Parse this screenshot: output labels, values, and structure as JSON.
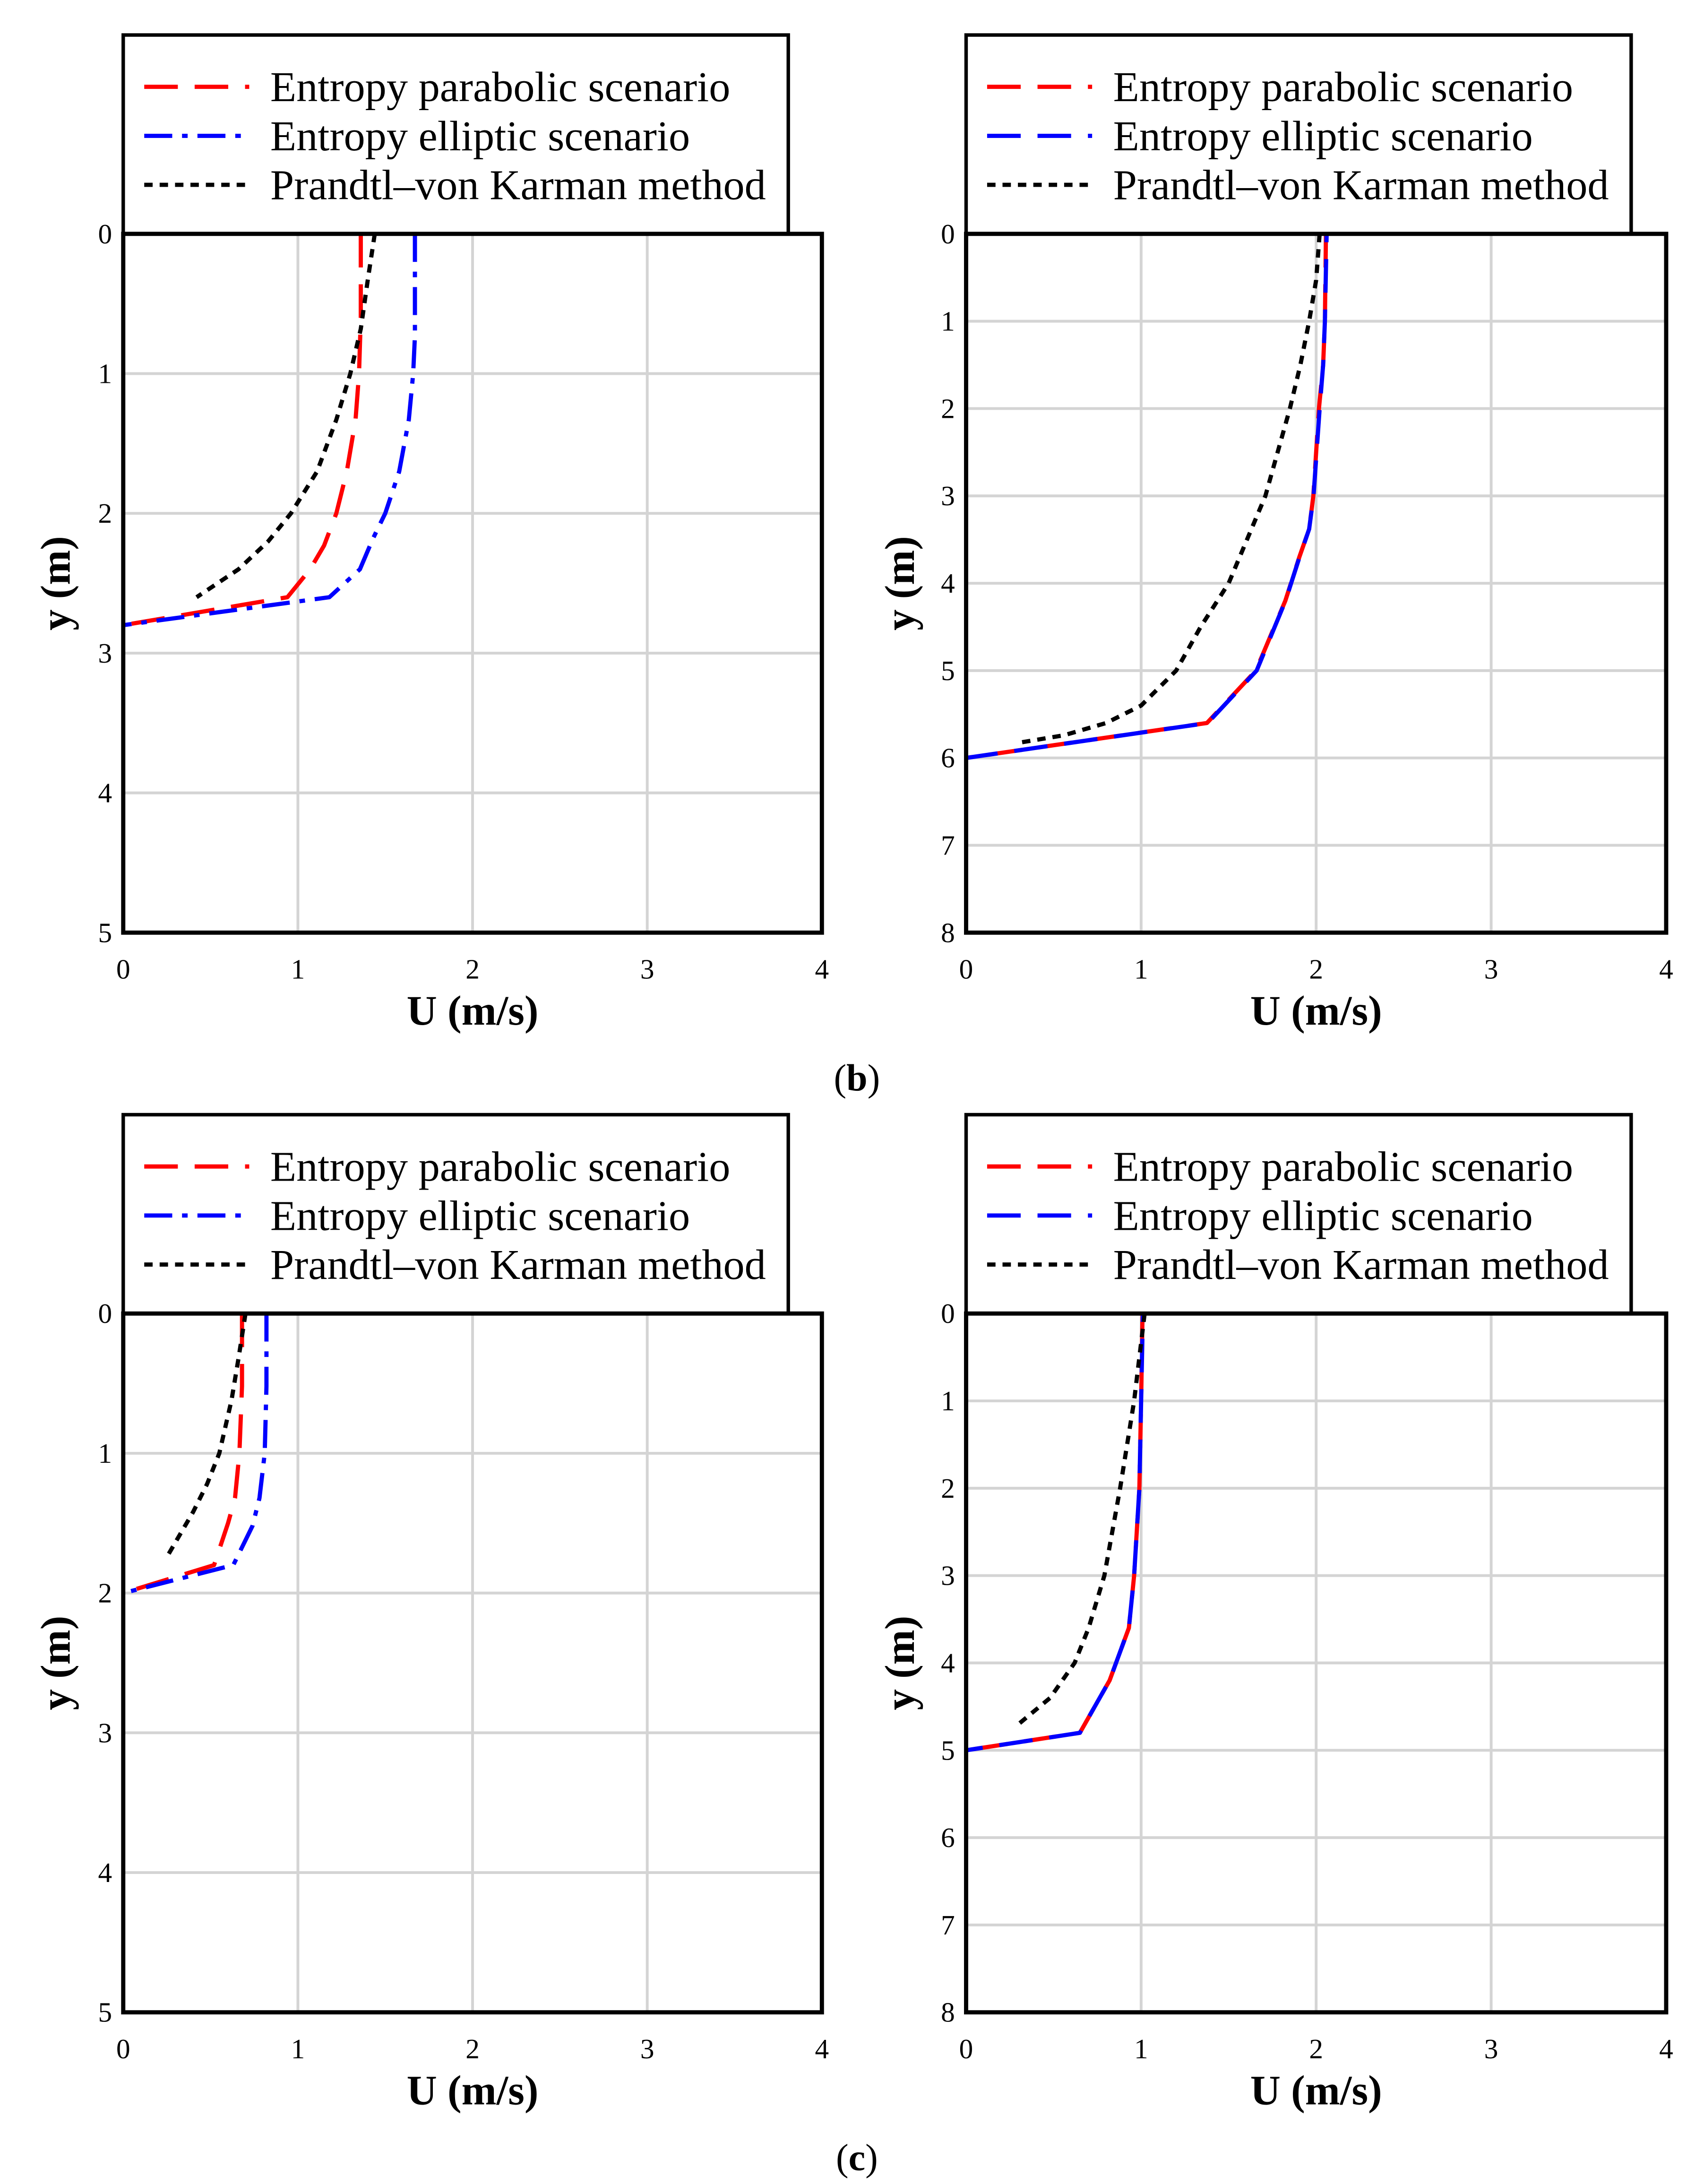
{
  "figure": {
    "panel_labels": [
      "(b)",
      "(c)"
    ]
  },
  "chart_data": [
    {
      "type": "line",
      "xlabel": "U (m/s)",
      "ylabel": "y (m)",
      "xlim": [
        0,
        4
      ],
      "ylim": [
        0,
        5
      ],
      "y_inverted": true,
      "xticks": [
        0,
        1,
        2,
        3,
        4
      ],
      "yticks": [
        0,
        1,
        2,
        3,
        4,
        5
      ],
      "grid": true,
      "legend_loc": "top",
      "series": [
        {
          "name": "Entropy parabolic scenario",
          "color": "#ff0000",
          "x": [
            1.36,
            1.36,
            1.35,
            1.33,
            1.28,
            1.22,
            1.15,
            1.07,
            0.94,
            0
          ],
          "y": [
            0,
            0.6,
            1.0,
            1.33,
            1.7,
            2.0,
            2.23,
            2.4,
            2.6,
            2.8
          ]
        },
        {
          "name": "Entropy elliptic scenario",
          "color": "#0000ff",
          "x": [
            1.67,
            1.67,
            1.66,
            1.635,
            1.58,
            1.5,
            1.43,
            1.355,
            1.18,
            0
          ],
          "y": [
            0,
            0.73,
            1.0,
            1.33,
            1.7,
            2.0,
            2.18,
            2.4,
            2.6,
            2.8
          ]
        },
        {
          "name": "Prandtl–von Karman method",
          "color": "#000000",
          "x": [
            1.44,
            1.4,
            1.36,
            1.3,
            1.22,
            1.11,
            0.96,
            0.83,
            0.66,
            0.42
          ],
          "y": [
            0,
            0.33,
            0.68,
            1.0,
            1.33,
            1.7,
            2.0,
            2.2,
            2.4,
            2.6
          ]
        }
      ]
    },
    {
      "type": "line",
      "xlabel": "U (m/s)",
      "ylabel": "y (m)",
      "xlim": [
        0,
        4
      ],
      "ylim": [
        0,
        8
      ],
      "y_inverted": true,
      "xticks": [
        0,
        1,
        2,
        3,
        4
      ],
      "yticks": [
        0,
        1,
        2,
        3,
        4,
        5,
        6,
        7,
        8
      ],
      "grid": true,
      "legend_loc": "top",
      "series": [
        {
          "name": "Entropy parabolic scenario",
          "color": "#ff0000",
          "x": [
            2.056,
            2.05,
            2.04,
            2.016,
            1.984,
            1.96,
            1.904,
            1.824,
            1.656,
            1.376,
            0
          ],
          "y": [
            0,
            1.0,
            1.5,
            2.0,
            3.0,
            3.38,
            3.7,
            4.2,
            5.0,
            5.6,
            6.0
          ]
        },
        {
          "name": "Entropy elliptic scenario",
          "color": "#0000ff",
          "x": [
            2.06,
            2.05,
            2.04,
            2.02,
            1.985,
            1.96,
            1.905,
            1.825,
            1.66,
            1.38,
            0
          ],
          "y": [
            0,
            1.0,
            1.5,
            2.0,
            3.0,
            3.38,
            3.7,
            4.2,
            5.0,
            5.6,
            6.0
          ]
        },
        {
          "name": "Prandtl–von Karman method",
          "color": "#000000",
          "x": [
            2.02,
            2.0,
            1.96,
            1.91,
            1.85,
            1.71,
            1.5,
            1.34,
            1.2,
            1.0,
            0.8,
            0.56,
            0.32
          ],
          "y": [
            0,
            0.53,
            1.0,
            1.5,
            2.0,
            3.0,
            4.0,
            4.5,
            5.0,
            5.4,
            5.6,
            5.74,
            5.82
          ]
        }
      ]
    },
    {
      "type": "line",
      "xlabel": "U (m/s)",
      "ylabel": "y (m)",
      "xlim": [
        0,
        4
      ],
      "ylim": [
        0,
        5
      ],
      "y_inverted": true,
      "xticks": [
        0,
        1,
        2,
        3,
        4
      ],
      "yticks": [
        0,
        1,
        2,
        3,
        4,
        5
      ],
      "grid": true,
      "legend_loc": "top",
      "series": [
        {
          "name": "Entropy parabolic scenario",
          "color": "#ff0000",
          "x": [
            0.68,
            0.68,
            0.665,
            0.64,
            0.6,
            0.52,
            0
          ],
          "y": [
            0,
            0.52,
            1.0,
            1.32,
            1.5,
            1.8,
            2.0
          ]
        },
        {
          "name": "Entropy elliptic scenario",
          "color": "#0000ff",
          "x": [
            0.82,
            0.82,
            0.81,
            0.78,
            0.74,
            0.63,
            0
          ],
          "y": [
            0,
            0.52,
            1.0,
            1.32,
            1.52,
            1.8,
            2.0
          ]
        },
        {
          "name": "Prandtl–von Karman method",
          "color": "#000000",
          "x": [
            0.7,
            0.66,
            0.62,
            0.55,
            0.48,
            0.4,
            0.26
          ],
          "y": [
            0,
            0.32,
            0.62,
            1.0,
            1.22,
            1.42,
            1.72
          ]
        }
      ]
    },
    {
      "type": "line",
      "xlabel": "U (m/s)",
      "ylabel": "y (m)",
      "xlim": [
        0,
        4
      ],
      "ylim": [
        0,
        8
      ],
      "y_inverted": true,
      "xticks": [
        0,
        1,
        2,
        3,
        4
      ],
      "yticks": [
        0,
        1,
        2,
        3,
        4,
        5,
        6,
        7,
        8
      ],
      "grid": true,
      "legend_loc": "top",
      "series": [
        {
          "name": "Entropy parabolic scenario",
          "color": "#ff0000",
          "x": [
            1.008,
            1.0,
            0.99,
            0.96,
            0.93,
            0.82,
            0.65,
            0
          ],
          "y": [
            0,
            1.0,
            2.0,
            3.0,
            3.6,
            4.2,
            4.8,
            5.0
          ]
        },
        {
          "name": "Entropy elliptic scenario",
          "color": "#0000ff",
          "x": [
            1.01,
            1.0,
            0.99,
            0.96,
            0.93,
            0.82,
            0.65,
            0
          ],
          "y": [
            0,
            1.0,
            2.0,
            3.0,
            3.6,
            4.2,
            4.8,
            5.0
          ]
        },
        {
          "name": "Prandtl–von Karman method",
          "color": "#000000",
          "x": [
            1.02,
            0.99,
            0.96,
            0.92,
            0.88,
            0.79,
            0.7,
            0.62,
            0.48,
            0.3
          ],
          "y": [
            0,
            0.5,
            1.0,
            1.5,
            2.0,
            3.0,
            3.6,
            4.0,
            4.4,
            4.7
          ]
        }
      ]
    }
  ]
}
